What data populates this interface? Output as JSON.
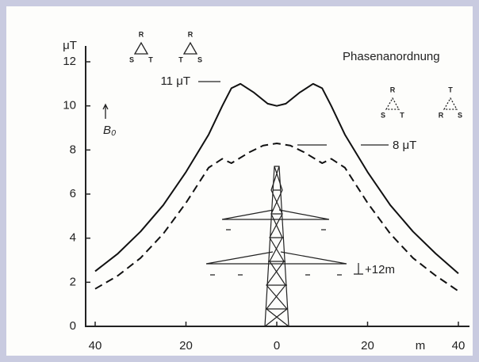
{
  "chart_data": {
    "type": "line",
    "y_label": "μT",
    "x_label": "m",
    "xlim": [
      -40,
      40
    ],
    "xticks": [
      {
        "value": -40,
        "label": "40"
      },
      {
        "value": -20,
        "label": "20"
      },
      0,
      {
        "value": 20,
        "label": "20"
      },
      40
    ],
    "ylim": [
      0,
      12
    ],
    "yticks": [
      0,
      2,
      4,
      6,
      8,
      10,
      12
    ],
    "series": [
      {
        "style": "solid",
        "color": "#111111",
        "x": [
          -40,
          -35,
          -30,
          -25,
          -20,
          -15,
          -12,
          -10,
          -8,
          -5,
          -2,
          0,
          2,
          5,
          8,
          10,
          12,
          15,
          20,
          25,
          30,
          35,
          40
        ],
        "values": [
          2.5,
          3.3,
          4.3,
          5.5,
          7.0,
          8.7,
          10.0,
          10.8,
          11.0,
          10.6,
          10.1,
          10.0,
          10.1,
          10.6,
          11.0,
          10.8,
          10.0,
          8.7,
          7.0,
          5.5,
          4.3,
          3.3,
          2.4
        ]
      },
      {
        "style": "dashed",
        "color": "#111111",
        "x": [
          -40,
          -35,
          -30,
          -25,
          -20,
          -15,
          -12,
          -10,
          -6,
          -3,
          0,
          3,
          6,
          10,
          12,
          15,
          20,
          25,
          30,
          35,
          40
        ],
        "values": [
          1.7,
          2.3,
          3.1,
          4.2,
          5.6,
          7.2,
          7.6,
          7.4,
          7.9,
          8.2,
          8.3,
          8.2,
          7.9,
          7.4,
          7.6,
          7.2,
          5.6,
          4.2,
          3.1,
          2.3,
          1.6
        ]
      }
    ],
    "annotations": [
      "Phasenanordnung",
      "11 μT",
      "8 μT",
      "B₀",
      "+12m"
    ],
    "phase_arrangements": [
      [
        "R",
        "S",
        "T"
      ],
      [
        "R",
        "T",
        "S"
      ],
      [
        "R",
        "S",
        "T"
      ],
      [
        "T",
        "R",
        "S"
      ]
    ]
  }
}
